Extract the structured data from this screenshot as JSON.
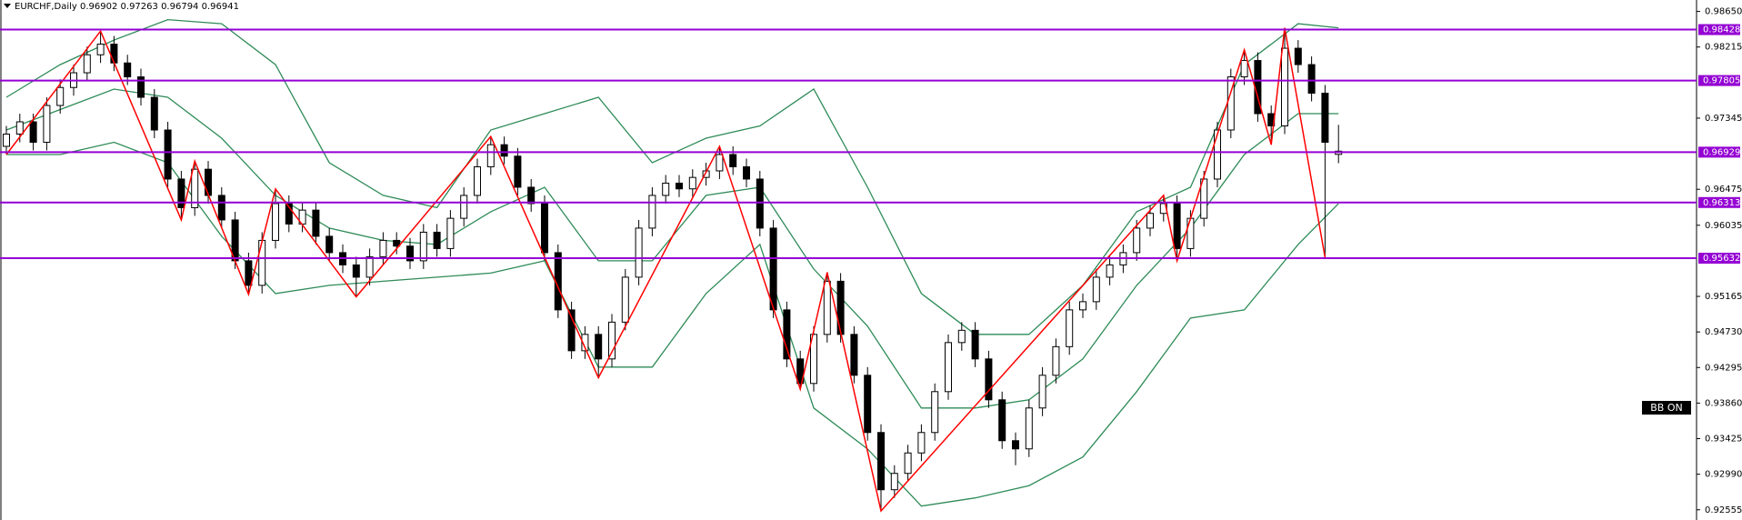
{
  "chart_data": {
    "type": "candlestick",
    "title": "EURCHF,Daily  0.96902 0.97263 0.96794 0.96941",
    "ylim": [
      0.9243,
      0.9879
    ],
    "yticks": [
      {
        "value": 0.9865,
        "label": "0.98650"
      },
      {
        "value": 0.98215,
        "label": "0.98215"
      },
      {
        "value": 0.97345,
        "label": "0.97345"
      },
      {
        "value": 0.96475,
        "label": "0.96475"
      },
      {
        "value": 0.96035,
        "label": "0.96035"
      },
      {
        "value": 0.95165,
        "label": "0.95165"
      },
      {
        "value": 0.9473,
        "label": "0.94730"
      },
      {
        "value": 0.94295,
        "label": "0.94295"
      },
      {
        "value": 0.9386,
        "label": "0.93860"
      },
      {
        "value": 0.93425,
        "label": "0.93425"
      },
      {
        "value": 0.9299,
        "label": "0.92990"
      },
      {
        "value": 0.92555,
        "label": "0.92555"
      }
    ],
    "up_color": "#ffffff",
    "down_color": "#000000",
    "open": [
      0.97,
      0.9715,
      0.973,
      0.9705,
      0.975,
      0.9772,
      0.979,
      0.9812,
      0.9825,
      0.9802,
      0.9785,
      0.976,
      0.972,
      0.966,
      0.9625,
      0.9672,
      0.964,
      0.961,
      0.956,
      0.953,
      0.9585,
      0.963,
      0.9605,
      0.9622,
      0.959,
      0.957,
      0.9555,
      0.954,
      0.9565,
      0.9585,
      0.9578,
      0.956,
      0.9595,
      0.9575,
      0.9612,
      0.964,
      0.9675,
      0.9702,
      0.9688,
      0.965,
      0.963,
      0.957,
      0.95,
      0.945,
      0.947,
      0.944,
      0.9485,
      0.954,
      0.96,
      0.964,
      0.9655,
      0.9648,
      0.9662,
      0.967,
      0.969,
      0.9675,
      0.966,
      0.96,
      0.95,
      0.944,
      0.941,
      0.947,
      0.9535,
      0.947,
      0.942,
      0.935,
      0.928,
      0.93,
      0.9325,
      0.935,
      0.94,
      0.946,
      0.9475,
      0.944,
      0.939,
      0.934,
      0.933,
      0.938,
      0.942,
      0.9455,
      0.95,
      0.951,
      0.954,
      0.9555,
      0.957,
      0.96,
      0.9618,
      0.963,
      0.9575,
      0.9612,
      0.966,
      0.972,
      0.9785,
      0.9805,
      0.974,
      0.9725,
      0.982,
      0.98,
      0.9765,
      0.96902
    ],
    "high": [
      0.9725,
      0.974,
      0.974,
      0.976,
      0.9782,
      0.98,
      0.9822,
      0.9841,
      0.9835,
      0.9812,
      0.9795,
      0.977,
      0.973,
      0.967,
      0.9682,
      0.9682,
      0.965,
      0.962,
      0.957,
      0.9595,
      0.9648,
      0.964,
      0.9632,
      0.9632,
      0.96,
      0.958,
      0.9565,
      0.9575,
      0.9595,
      0.9595,
      0.9588,
      0.9605,
      0.9605,
      0.9622,
      0.965,
      0.9685,
      0.9712,
      0.9712,
      0.9698,
      0.966,
      0.964,
      0.958,
      0.951,
      0.948,
      0.948,
      0.9495,
      0.955,
      0.961,
      0.965,
      0.9665,
      0.9665,
      0.9672,
      0.968,
      0.97,
      0.97,
      0.9685,
      0.967,
      0.961,
      0.951,
      0.945,
      0.948,
      0.9546,
      0.9545,
      0.948,
      0.943,
      0.936,
      0.931,
      0.9335,
      0.936,
      0.941,
      0.947,
      0.9485,
      0.9485,
      0.945,
      0.94,
      0.935,
      0.939,
      0.943,
      0.9465,
      0.951,
      0.952,
      0.955,
      0.9565,
      0.958,
      0.961,
      0.9628,
      0.964,
      0.964,
      0.9622,
      0.967,
      0.973,
      0.9795,
      0.9818,
      0.9815,
      0.975,
      0.9845,
      0.983,
      0.981,
      0.9775,
      0.97263
    ],
    "low": [
      0.969,
      0.9705,
      0.9695,
      0.9695,
      0.974,
      0.9762,
      0.978,
      0.9802,
      0.9792,
      0.9775,
      0.975,
      0.971,
      0.965,
      0.961,
      0.9615,
      0.963,
      0.96,
      0.955,
      0.9519,
      0.952,
      0.9575,
      0.9595,
      0.9595,
      0.958,
      0.956,
      0.9545,
      0.9516,
      0.953,
      0.9555,
      0.9568,
      0.955,
      0.955,
      0.9565,
      0.9565,
      0.9602,
      0.963,
      0.9665,
      0.9678,
      0.964,
      0.962,
      0.956,
      0.949,
      0.944,
      0.944,
      0.9417,
      0.943,
      0.9475,
      0.953,
      0.959,
      0.963,
      0.9638,
      0.9638,
      0.9652,
      0.966,
      0.9665,
      0.965,
      0.959,
      0.949,
      0.943,
      0.9403,
      0.94,
      0.946,
      0.946,
      0.941,
      0.934,
      0.9254,
      0.927,
      0.929,
      0.9315,
      0.934,
      0.939,
      0.945,
      0.943,
      0.938,
      0.933,
      0.931,
      0.932,
      0.937,
      0.941,
      0.9445,
      0.949,
      0.95,
      0.953,
      0.9545,
      0.956,
      0.959,
      0.9608,
      0.956,
      0.9565,
      0.9602,
      0.965,
      0.971,
      0.9775,
      0.973,
      0.9702,
      0.9715,
      0.979,
      0.9755,
      0.9564,
      0.96794
    ],
    "close": [
      0.9715,
      0.973,
      0.9705,
      0.975,
      0.9772,
      0.979,
      0.9812,
      0.9825,
      0.9802,
      0.9785,
      0.976,
      0.972,
      0.966,
      0.9625,
      0.9672,
      0.964,
      0.961,
      0.956,
      0.953,
      0.9585,
      0.963,
      0.9605,
      0.9622,
      0.959,
      0.957,
      0.9555,
      0.954,
      0.9565,
      0.9585,
      0.9578,
      0.956,
      0.9595,
      0.9575,
      0.9612,
      0.964,
      0.9675,
      0.9702,
      0.9688,
      0.965,
      0.963,
      0.957,
      0.95,
      0.945,
      0.947,
      0.944,
      0.9485,
      0.954,
      0.96,
      0.964,
      0.9655,
      0.9648,
      0.9662,
      0.967,
      0.969,
      0.9675,
      0.966,
      0.96,
      0.95,
      0.944,
      0.941,
      0.947,
      0.9535,
      0.947,
      0.942,
      0.935,
      0.928,
      0.93,
      0.9325,
      0.935,
      0.94,
      0.946,
      0.9475,
      0.944,
      0.939,
      0.934,
      0.933,
      0.938,
      0.942,
      0.9455,
      0.95,
      0.951,
      0.954,
      0.9555,
      0.957,
      0.96,
      0.9618,
      0.963,
      0.9575,
      0.9612,
      0.966,
      0.972,
      0.9785,
      0.9805,
      0.974,
      0.9725,
      0.982,
      0.98,
      0.9765,
      0.9705,
      0.96941
    ],
    "bands": {
      "color": "#2e8b57",
      "x": [
        0,
        4,
        8,
        12,
        16,
        20,
        24,
        28,
        32,
        36,
        40,
        44,
        48,
        52,
        56,
        60,
        64,
        68,
        72,
        76,
        80,
        84,
        88,
        92,
        96,
        99
      ],
      "middle": [
        0.972,
        0.9745,
        0.977,
        0.976,
        0.971,
        0.964,
        0.96,
        0.9585,
        0.958,
        0.962,
        0.965,
        0.956,
        0.956,
        0.964,
        0.965,
        0.955,
        0.948,
        0.938,
        0.938,
        0.939,
        0.944,
        0.953,
        0.96,
        0.969,
        0.974,
        0.974
      ],
      "upper": [
        0.976,
        0.98,
        0.983,
        0.9855,
        0.985,
        0.98,
        0.968,
        0.964,
        0.9625,
        0.972,
        0.974,
        0.976,
        0.968,
        0.971,
        0.9725,
        0.977,
        0.965,
        0.952,
        0.947,
        0.947,
        0.953,
        0.962,
        0.965,
        0.98,
        0.985,
        0.9845
      ],
      "lower": [
        0.969,
        0.969,
        0.9705,
        0.968,
        0.959,
        0.952,
        0.953,
        0.9535,
        0.954,
        0.9545,
        0.956,
        0.943,
        0.943,
        0.952,
        0.958,
        0.938,
        0.933,
        0.926,
        0.927,
        0.9285,
        0.932,
        0.94,
        0.949,
        0.95,
        0.958,
        0.963
      ]
    },
    "zigzag": {
      "color": "#ff0000",
      "x": [
        0,
        7,
        13,
        14,
        18,
        20,
        26,
        36,
        44,
        53,
        59,
        61,
        65,
        86,
        87,
        92,
        94,
        95,
        98
      ],
      "values": [
        0.969,
        0.9841,
        0.961,
        0.9682,
        0.9519,
        0.9648,
        0.9516,
        0.9712,
        0.9417,
        0.97,
        0.9403,
        0.9546,
        0.9254,
        0.964,
        0.956,
        0.9818,
        0.9702,
        0.9845,
        0.9564
      ]
    },
    "levels": {
      "color": "#9400d3",
      "values": [
        {
          "value": 0.98428,
          "label": "0.98428"
        },
        {
          "value": 0.97805,
          "label": "0.97805"
        },
        {
          "value": 0.96929,
          "label": "0.96929"
        },
        {
          "value": 0.96313,
          "label": "0.96313"
        },
        {
          "value": 0.95632,
          "label": "0.95632"
        }
      ]
    },
    "annotations": [
      "BB ON"
    ]
  }
}
